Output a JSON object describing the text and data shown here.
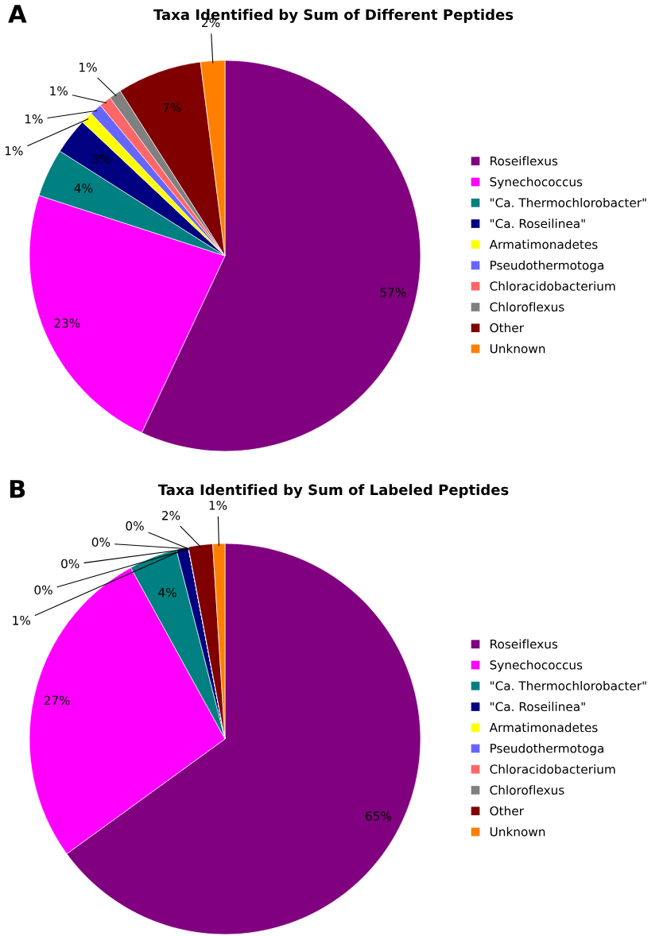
{
  "chart_data": [
    {
      "type": "pie",
      "title": "Taxa Identified by Sum of Different Peptides",
      "annotations": [
        "A"
      ],
      "legend": "right",
      "categories": [
        "Roseiflexus",
        "Synechococcus",
        "\"Ca. Thermochlorobacter\"",
        "\"Ca. Roseilinea\"",
        "Armatimonadetes",
        "Pseudothermotoga",
        "Chloracidobacterium",
        "Chloroflexus",
        "Other",
        "Unknown"
      ],
      "values": [
        57,
        23,
        4,
        3,
        1,
        1,
        1,
        1,
        7,
        2
      ],
      "value_labels": [
        "57%",
        "23%",
        "4%",
        "3%",
        "1%",
        "1%",
        "1%",
        "1%",
        "7%",
        "2%"
      ],
      "colors": [
        "#800080",
        "#ff00ff",
        "#008080",
        "#000080",
        "#ffff00",
        "#6666ff",
        "#ff6666",
        "#808080",
        "#800000",
        "#ff8000"
      ]
    },
    {
      "type": "pie",
      "title": "Taxa Identified by Sum of Labeled Peptides",
      "annotations": [
        "B"
      ],
      "legend": "right",
      "categories": [
        "Roseiflexus",
        "Synechococcus",
        "\"Ca. Thermochlorobacter\"",
        "\"Ca. Roseilinea\"",
        "Armatimonadetes",
        "Pseudothermotoga",
        "Chloracidobacterium",
        "Chloroflexus",
        "Other",
        "Unknown"
      ],
      "values": [
        65,
        27,
        4,
        1,
        0,
        0,
        0,
        0,
        2,
        1
      ],
      "value_labels": [
        "65%",
        "27%",
        "4%",
        "1%",
        "0%",
        "0%",
        "0%",
        "0%",
        "2%",
        "1%"
      ],
      "colors": [
        "#800080",
        "#ff00ff",
        "#008080",
        "#000080",
        "#ffff00",
        "#6666ff",
        "#ff6666",
        "#808080",
        "#800000",
        "#ff8000"
      ]
    }
  ]
}
